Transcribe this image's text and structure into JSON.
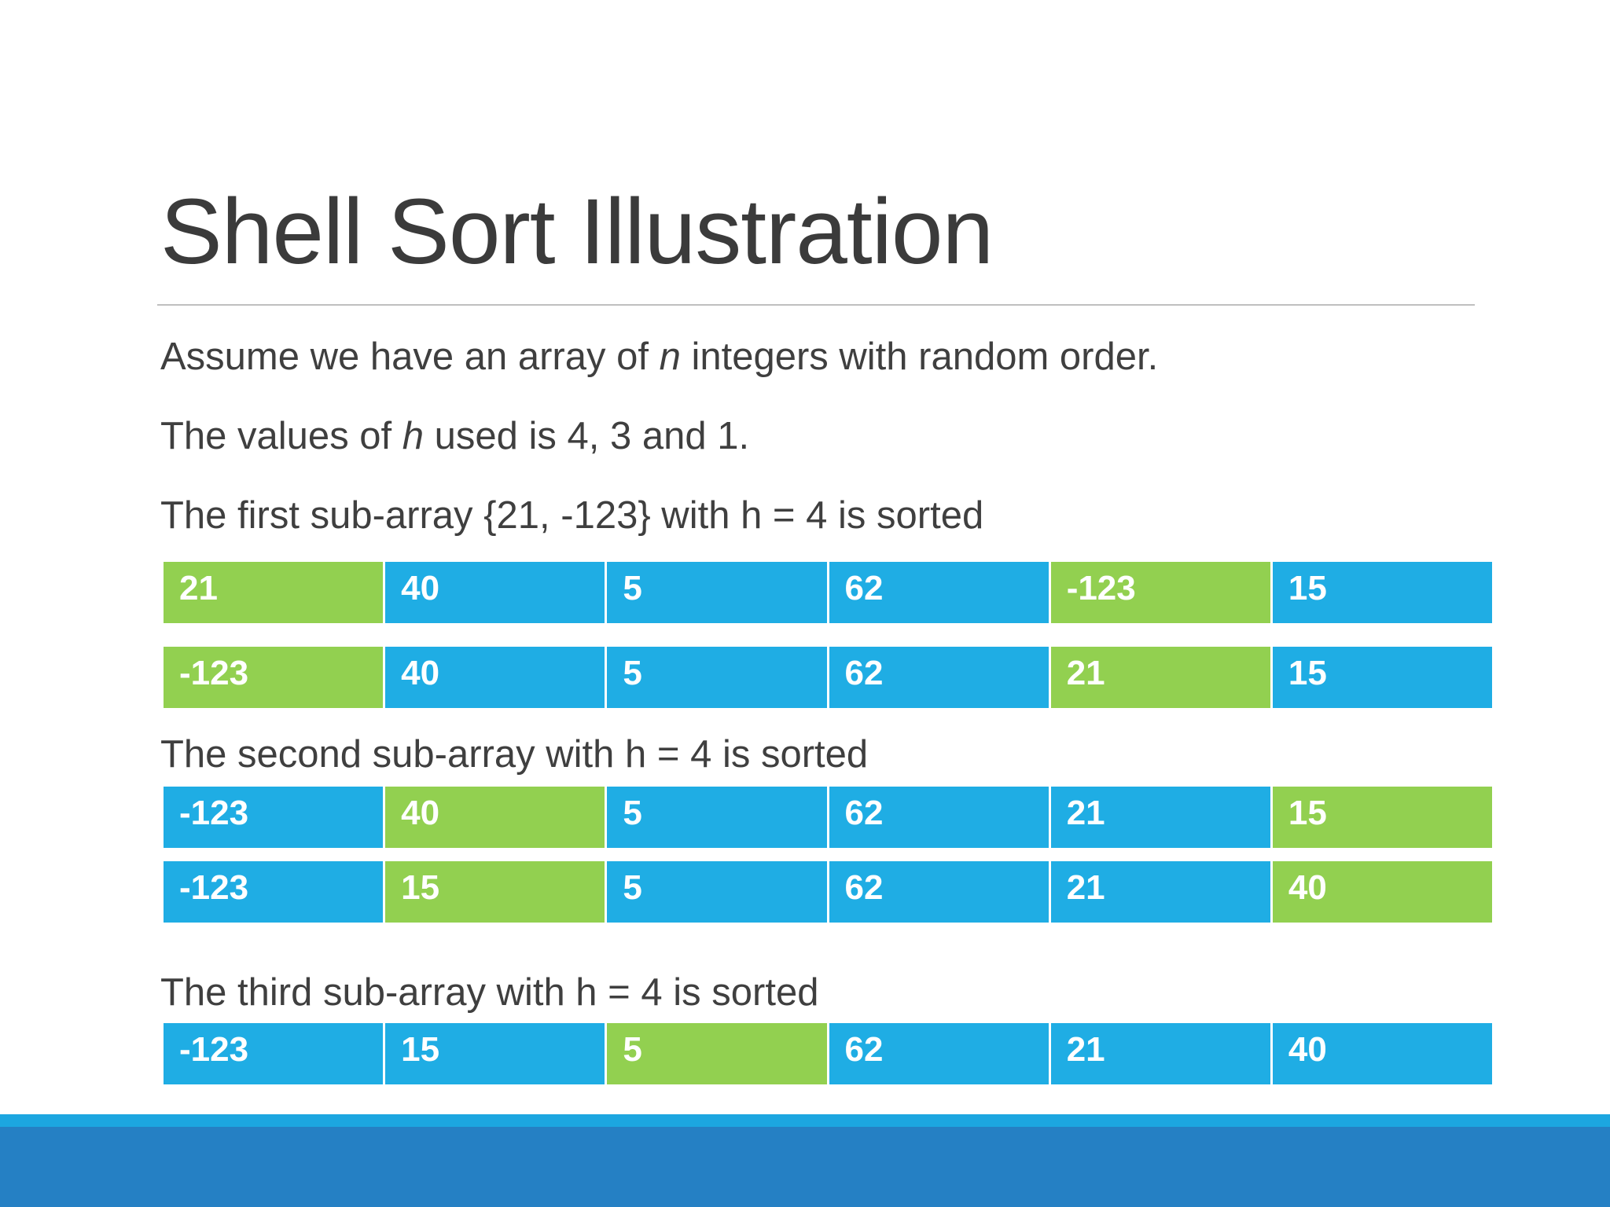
{
  "slide": {
    "title": "Shell Sort Illustration",
    "line1": {
      "pre": "Assume we have an array of ",
      "var": "n",
      "post": " integers with random order."
    },
    "line2": {
      "pre": "The values of ",
      "var": "h",
      "post": " used is 4, 3 and 1."
    },
    "line3": "The first sub-array {21, -123}  with h = 4 is sorted",
    "line4": "The second sub-array with h = 4 is sorted",
    "line5": "The third sub-array with h = 4 is sorted"
  },
  "colors": {
    "blue": "#1fade4",
    "green": "#92d050",
    "footer_light": "#1ca6e0",
    "footer_dark": "#2580c4"
  },
  "arrays": [
    {
      "values": [
        "21",
        "40",
        "5",
        "62",
        "-123",
        "15"
      ],
      "highlight": [
        0,
        4
      ]
    },
    {
      "values": [
        "-123",
        "40",
        "5",
        "62",
        "21",
        "15"
      ],
      "highlight": [
        0,
        4
      ]
    },
    {
      "values": [
        "-123",
        "40",
        "5",
        "62",
        "21",
        "15"
      ],
      "highlight": [
        1,
        5
      ]
    },
    {
      "values": [
        "-123",
        "15",
        "5",
        "62",
        "21",
        "40"
      ],
      "highlight": [
        1,
        5
      ]
    },
    {
      "values": [
        "-123",
        "15",
        "5",
        "62",
        "21",
        "40"
      ],
      "highlight": [
        2
      ]
    }
  ]
}
